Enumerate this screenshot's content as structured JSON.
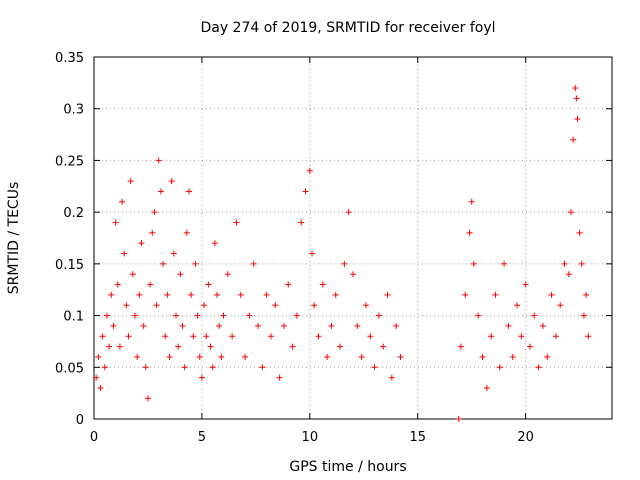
{
  "chart_data": {
    "type": "scatter",
    "title": "Day 274 of 2019, SRMTID for receiver foyl",
    "xlabel": "GPS time / hours",
    "ylabel": "SRMTID / TECUs",
    "xlim": [
      0,
      24
    ],
    "ylim": [
      0,
      0.35
    ],
    "xticks": [
      0,
      5,
      10,
      15,
      20
    ],
    "yticks": [
      0,
      0.05,
      0.1,
      0.15,
      0.2,
      0.25,
      0.3,
      0.35
    ],
    "xtick_labels": [
      "0",
      "5",
      "10",
      "15",
      "20"
    ],
    "ytick_labels": [
      "0",
      "0.05",
      "0.1",
      "0.15",
      "0.2",
      "0.25",
      "0.3",
      "0.35"
    ],
    "grid": true,
    "marker": "+",
    "color": "#ff0000",
    "series": [
      {
        "name": "SRMTID",
        "points": [
          [
            0.1,
            0.04
          ],
          [
            0.2,
            0.06
          ],
          [
            0.3,
            0.03
          ],
          [
            0.4,
            0.08
          ],
          [
            0.5,
            0.05
          ],
          [
            0.6,
            0.1
          ],
          [
            0.7,
            0.07
          ],
          [
            0.8,
            0.12
          ],
          [
            0.9,
            0.09
          ],
          [
            1.0,
            0.19
          ],
          [
            1.1,
            0.13
          ],
          [
            1.2,
            0.07
          ],
          [
            1.3,
            0.21
          ],
          [
            1.4,
            0.16
          ],
          [
            1.5,
            0.11
          ],
          [
            1.6,
            0.08
          ],
          [
            1.7,
            0.23
          ],
          [
            1.8,
            0.14
          ],
          [
            1.9,
            0.1
          ],
          [
            2.0,
            0.06
          ],
          [
            2.1,
            0.12
          ],
          [
            2.2,
            0.17
          ],
          [
            2.3,
            0.09
          ],
          [
            2.4,
            0.05
          ],
          [
            2.5,
            0.02
          ],
          [
            2.6,
            0.13
          ],
          [
            2.7,
            0.18
          ],
          [
            2.8,
            0.2
          ],
          [
            2.9,
            0.11
          ],
          [
            3.0,
            0.25
          ],
          [
            3.1,
            0.22
          ],
          [
            3.2,
            0.15
          ],
          [
            3.3,
            0.08
          ],
          [
            3.4,
            0.12
          ],
          [
            3.5,
            0.06
          ],
          [
            3.6,
            0.23
          ],
          [
            3.7,
            0.16
          ],
          [
            3.8,
            0.1
          ],
          [
            3.9,
            0.07
          ],
          [
            4.0,
            0.14
          ],
          [
            4.1,
            0.09
          ],
          [
            4.2,
            0.05
          ],
          [
            4.3,
            0.18
          ],
          [
            4.4,
            0.22
          ],
          [
            4.5,
            0.12
          ],
          [
            4.6,
            0.08
          ],
          [
            4.7,
            0.15
          ],
          [
            4.8,
            0.1
          ],
          [
            4.9,
            0.06
          ],
          [
            5.0,
            0.04
          ],
          [
            5.1,
            0.11
          ],
          [
            5.2,
            0.08
          ],
          [
            5.3,
            0.13
          ],
          [
            5.4,
            0.07
          ],
          [
            5.5,
            0.05
          ],
          [
            5.6,
            0.17
          ],
          [
            5.7,
            0.12
          ],
          [
            5.8,
            0.09
          ],
          [
            5.9,
            0.06
          ],
          [
            6.0,
            0.1
          ],
          [
            6.2,
            0.14
          ],
          [
            6.4,
            0.08
          ],
          [
            6.6,
            0.19
          ],
          [
            6.8,
            0.12
          ],
          [
            7.0,
            0.06
          ],
          [
            7.2,
            0.1
          ],
          [
            7.4,
            0.15
          ],
          [
            7.6,
            0.09
          ],
          [
            7.8,
            0.05
          ],
          [
            8.0,
            0.12
          ],
          [
            8.2,
            0.08
          ],
          [
            8.4,
            0.11
          ],
          [
            8.6,
            0.04
          ],
          [
            8.8,
            0.09
          ],
          [
            9.0,
            0.13
          ],
          [
            9.2,
            0.07
          ],
          [
            9.4,
            0.1
          ],
          [
            9.6,
            0.19
          ],
          [
            9.8,
            0.22
          ],
          [
            10.0,
            0.24
          ],
          [
            10.1,
            0.16
          ],
          [
            10.2,
            0.11
          ],
          [
            10.4,
            0.08
          ],
          [
            10.6,
            0.13
          ],
          [
            10.8,
            0.06
          ],
          [
            11.0,
            0.09
          ],
          [
            11.2,
            0.12
          ],
          [
            11.4,
            0.07
          ],
          [
            11.6,
            0.15
          ],
          [
            11.8,
            0.2
          ],
          [
            12.0,
            0.14
          ],
          [
            12.2,
            0.09
          ],
          [
            12.4,
            0.06
          ],
          [
            12.6,
            0.11
          ],
          [
            12.8,
            0.08
          ],
          [
            13.0,
            0.05
          ],
          [
            13.2,
            0.1
          ],
          [
            13.4,
            0.07
          ],
          [
            13.6,
            0.12
          ],
          [
            13.8,
            0.04
          ],
          [
            14.0,
            0.09
          ],
          [
            14.2,
            0.06
          ],
          [
            16.9,
            0.0
          ],
          [
            17.0,
            0.07
          ],
          [
            17.2,
            0.12
          ],
          [
            17.4,
            0.18
          ],
          [
            17.5,
            0.21
          ],
          [
            17.6,
            0.15
          ],
          [
            17.8,
            0.1
          ],
          [
            18.0,
            0.06
          ],
          [
            18.2,
            0.03
          ],
          [
            18.4,
            0.08
          ],
          [
            18.6,
            0.12
          ],
          [
            18.8,
            0.05
          ],
          [
            19.0,
            0.15
          ],
          [
            19.2,
            0.09
          ],
          [
            19.4,
            0.06
          ],
          [
            19.6,
            0.11
          ],
          [
            19.8,
            0.08
          ],
          [
            20.0,
            0.13
          ],
          [
            20.2,
            0.07
          ],
          [
            20.4,
            0.1
          ],
          [
            20.6,
            0.05
          ],
          [
            20.8,
            0.09
          ],
          [
            21.0,
            0.06
          ],
          [
            21.2,
            0.12
          ],
          [
            21.4,
            0.08
          ],
          [
            21.6,
            0.11
          ],
          [
            21.8,
            0.15
          ],
          [
            22.0,
            0.14
          ],
          [
            22.1,
            0.2
          ],
          [
            22.2,
            0.27
          ],
          [
            22.3,
            0.32
          ],
          [
            22.35,
            0.31
          ],
          [
            22.4,
            0.29
          ],
          [
            22.5,
            0.18
          ],
          [
            22.6,
            0.15
          ],
          [
            22.7,
            0.1
          ],
          [
            22.8,
            0.12
          ],
          [
            22.9,
            0.08
          ]
        ]
      }
    ]
  }
}
